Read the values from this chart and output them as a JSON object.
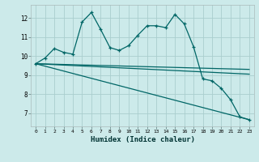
{
  "x": [
    0,
    1,
    2,
    3,
    4,
    5,
    6,
    7,
    8,
    9,
    10,
    11,
    12,
    13,
    14,
    15,
    16,
    17,
    18,
    19,
    20,
    21,
    22,
    23
  ],
  "line1": [
    9.6,
    9.9,
    10.4,
    10.2,
    10.1,
    11.8,
    12.3,
    11.4,
    10.45,
    10.3,
    10.55,
    11.1,
    11.6,
    11.6,
    11.5,
    12.2,
    11.7,
    10.5,
    8.8,
    8.7,
    8.3,
    7.7,
    6.8,
    6.65
  ],
  "line2_x": [
    0,
    23
  ],
  "line2_y": [
    9.6,
    9.3
  ],
  "line3_x": [
    0,
    23
  ],
  "line3_y": [
    9.6,
    9.05
  ],
  "line4_x": [
    0,
    23
  ],
  "line4_y": [
    9.6,
    6.65
  ],
  "background_color": "#cceaea",
  "grid_color": "#aacece",
  "line_color": "#006666",
  "xlabel": "Humidex (Indice chaleur)",
  "yticks": [
    7,
    8,
    9,
    10,
    11,
    12
  ],
  "xticks": [
    0,
    1,
    2,
    3,
    4,
    5,
    6,
    7,
    8,
    9,
    10,
    11,
    12,
    13,
    14,
    15,
    16,
    17,
    18,
    19,
    20,
    21,
    22,
    23
  ],
  "ylim": [
    6.3,
    12.7
  ],
  "xlim": [
    -0.5,
    23.5
  ]
}
